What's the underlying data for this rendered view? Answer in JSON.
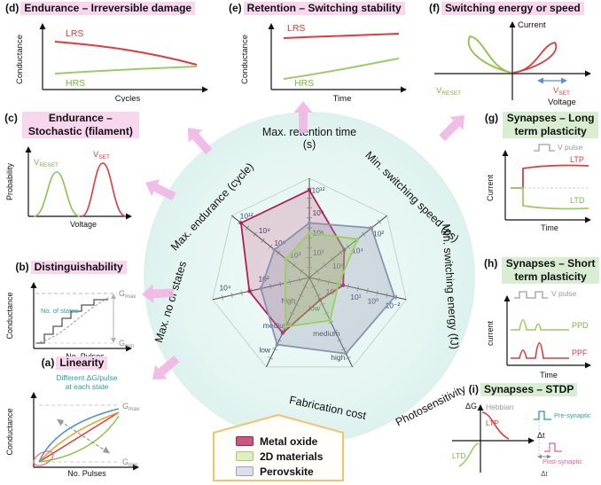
{
  "panels": {
    "a": {
      "tag": "(a)",
      "title": "Linearity",
      "ylabel": "Conductance",
      "xlabel": "No. Pulses",
      "note_line1": "Different ΔG/pulse",
      "note_line2": "at each state",
      "g_max": {
        "base": "G",
        "sub": "max"
      },
      "g_min": {
        "base": "G",
        "sub": "min"
      }
    },
    "b": {
      "tag": "(b)",
      "title": "Distinguishability",
      "ylabel": "Conductance",
      "xlabel": "No. Pulses",
      "states_note": "No. of states",
      "g_max": {
        "base": "G",
        "sub": "max"
      },
      "g_min": {
        "base": "G",
        "sub": "min"
      }
    },
    "c": {
      "tag": "(c)",
      "title": "Endurance – Stochastic (filament)",
      "ylabel": "Probability",
      "xlabel": "Voltage",
      "v_reset": {
        "base": "V",
        "sub": "RESET"
      },
      "v_set": {
        "base": "V",
        "sub": "SET"
      }
    },
    "d": {
      "tag": "(d)",
      "title": "Endurance – Irreversible damage",
      "ylabel": "Conductance",
      "xlabel": "Cycles",
      "lrs": "LRS",
      "hrs": "HRS"
    },
    "e": {
      "tag": "(e)",
      "title": "Retention – Switching stability",
      "ylabel": "Conductance",
      "xlabel": "Time",
      "lrs": "LRS",
      "hrs": "HRS"
    },
    "f": {
      "tag": "(f)",
      "title": "Switching energy or speed",
      "ylabel": "Current",
      "xlabel": "Voltage",
      "v_reset": {
        "base": "V",
        "sub": "RESET"
      },
      "v_set": {
        "base": "V",
        "sub": "SET"
      }
    },
    "g": {
      "tag": "(g)",
      "title": "Synapses – Long term plasticity",
      "ylabel": "Current",
      "xlabel": "Time",
      "pulse": "V pulse",
      "ltp": "LTP",
      "ltd": "LTD"
    },
    "h": {
      "tag": "(h)",
      "title": "Synapses – Short term plasticity",
      "ylabel": "current",
      "xlabel": "Time",
      "pulse": "V pulse",
      "ppd": "PPD",
      "ppf": "PPF"
    },
    "i": {
      "tag": "(i)",
      "title": "Synapses – STDP",
      "ylabel": "ΔG",
      "xlabel": "Δt",
      "hebbian": "Hebbian",
      "ltp": "LTP",
      "ltd": "LTD",
      "pre": "Pre-synaptic",
      "post": "Post-synaptic",
      "delta_t": "Δt"
    }
  },
  "legend": {
    "items": [
      {
        "label": "Metal oxide",
        "fill": "#c9567e",
        "stroke": "#8e2a52"
      },
      {
        "label": "2D materials",
        "fill": "#dff0c0",
        "stroke": "#a3c878"
      },
      {
        "label": "Perovskite",
        "fill": "#dcdfeb",
        "stroke": "#9aa1b8"
      }
    ]
  },
  "chart_data": {
    "type": "radar",
    "values_scale": "fraction of axis radius (0-1)",
    "axes": [
      {
        "label": "Max. retention time (s)",
        "ticks": [
          {
            "t": "10³",
            "f": 0.25
          },
          {
            "t": "10⁶",
            "f": 0.45
          },
          {
            "t": "10⁹",
            "f": 0.65
          },
          {
            "t": "10¹²",
            "f": 0.88
          }
        ]
      },
      {
        "label": "Min. switching speed (ps)",
        "ticks": [
          {
            "t": "10⁶",
            "f": 0.3
          },
          {
            "t": "10⁴",
            "f": 0.55
          },
          {
            "t": "10²",
            "f": 0.82
          }
        ]
      },
      {
        "label": "Min. switching energy (fJ)",
        "ticks": [
          {
            "t": "10⁶",
            "f": 0.25
          },
          {
            "t": "10¹",
            "f": 0.5
          },
          {
            "t": "10⁰",
            "f": 0.68
          },
          {
            "t": "10⁻²",
            "f": 0.88
          }
        ]
      },
      {
        "label": "Photosensitivity",
        "ticks": [
          {
            "t": "low",
            "f": 0.3
          },
          {
            "t": "medium",
            "f": 0.58
          },
          {
            "t": "high",
            "f": 0.85
          }
        ]
      },
      {
        "label": "Fabrication cost",
        "ticks": [
          {
            "t": "high",
            "f": 0.3
          },
          {
            "t": "medium",
            "f": 0.58
          },
          {
            "t": "low",
            "f": 0.85
          }
        ]
      },
      {
        "label": "Max. no of states",
        "ticks": [
          {
            "t": "10²",
            "f": 0.45
          },
          {
            "t": "10⁴",
            "f": 0.85
          }
        ]
      },
      {
        "label": "Max. endurance (cycle)",
        "ticks": [
          {
            "t": "10³",
            "f": 0.25
          },
          {
            "t": "10⁶",
            "f": 0.45
          },
          {
            "t": "10⁹",
            "f": 0.65
          },
          {
            "t": "10¹²",
            "f": 0.88
          }
        ]
      }
    ],
    "series": [
      {
        "name": "Metal oxide",
        "color": "#b01e57",
        "fill": "rgba(176,30,87,0.18)",
        "values": [
          0.88,
          0.45,
          0.35,
          0.25,
          0.62,
          0.62,
          0.88
        ]
      },
      {
        "name": "Perovskite",
        "color": "#8a93ad",
        "fill": "rgba(138,147,173,0.30)",
        "values": [
          0.55,
          0.8,
          0.88,
          0.85,
          0.75,
          0.5,
          0.45
        ]
      },
      {
        "name": "2D materials",
        "color": "#9ccc65",
        "fill": "rgba(156,204,101,0.30)",
        "values": [
          0.45,
          0.62,
          0.3,
          0.48,
          0.55,
          0.25,
          0.3
        ]
      }
    ],
    "legend_position": "bottom-center",
    "grid": "spokes-with-hash-ticks"
  }
}
